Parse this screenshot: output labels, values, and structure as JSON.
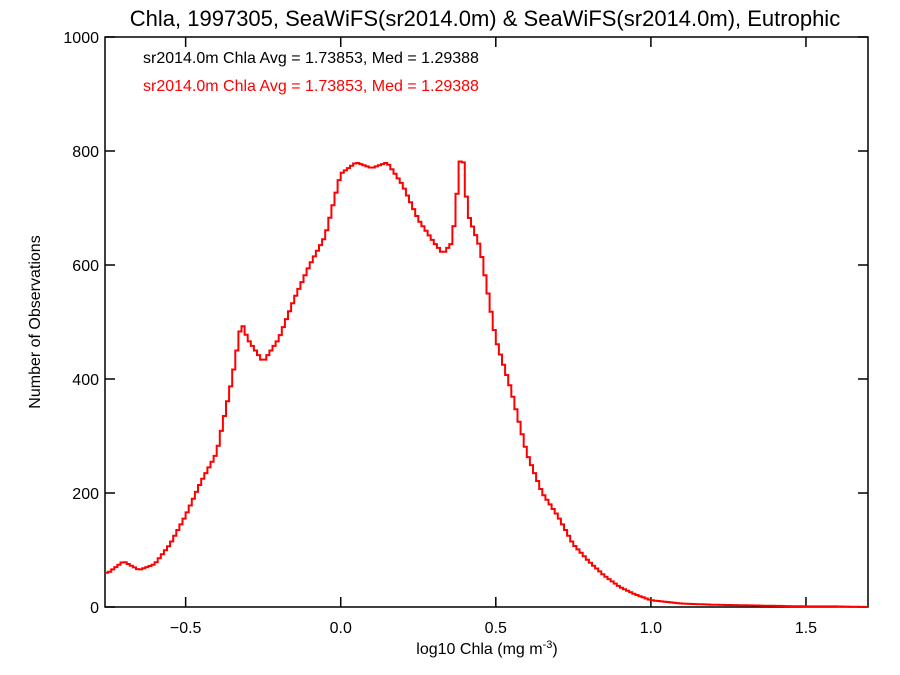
{
  "chart_data": {
    "type": "histogram",
    "title": "Chla, 1997305, SeaWiFS(sr2014.0m) & SeaWiFS(sr2014.0m), Eutrophic",
    "xlabel": "log10 Chla (mg m",
    "xlabel_sup": "-3",
    "xlabel_close": ")",
    "ylabel": "Number of Observations",
    "xlim": [
      -0.76,
      1.7
    ],
    "ylim": [
      0,
      1000
    ],
    "xticks": [
      -0.5,
      0.0,
      0.5,
      1.0,
      1.5
    ],
    "xtick_labels": [
      "−0.5",
      "0.0",
      "0.5",
      "1.0",
      "1.5"
    ],
    "yticks": [
      0,
      200,
      400,
      600,
      800,
      1000
    ],
    "ytick_labels": [
      "0",
      "200",
      "400",
      "600",
      "800",
      "1000"
    ],
    "annotations": [
      {
        "text": "sr2014.0m Chla Avg = 1.73853, Med = 1.29388",
        "color": "#000000"
      },
      {
        "text": "sr2014.0m Chla Avg = 1.73853, Med = 1.29388",
        "color": "#ff0000"
      }
    ],
    "series": [
      {
        "color": "#ff0000",
        "x": [
          -0.75,
          -0.7,
          -0.65,
          -0.6,
          -0.55,
          -0.5,
          -0.45,
          -0.4,
          -0.35,
          -0.32,
          -0.3,
          -0.25,
          -0.2,
          -0.15,
          -0.1,
          -0.05,
          0.0,
          0.05,
          0.1,
          0.15,
          0.2,
          0.25,
          0.3,
          0.33,
          0.36,
          0.39,
          0.41,
          0.45,
          0.5,
          0.55,
          0.6,
          0.65,
          0.7,
          0.75,
          0.8,
          0.85,
          0.9,
          0.95,
          1.0,
          1.1,
          1.2,
          1.3,
          1.4,
          1.5,
          1.6,
          1.7
        ],
        "y": [
          60,
          80,
          65,
          75,
          110,
          160,
          220,
          270,
          400,
          500,
          470,
          430,
          470,
          540,
          600,
          650,
          760,
          780,
          770,
          780,
          740,
          680,
          640,
          620,
          640,
          810,
          690,
          630,
          470,
          380,
          270,
          200,
          160,
          110,
          80,
          55,
          35,
          22,
          12,
          6,
          4,
          3,
          2,
          1,
          1,
          0
        ]
      }
    ]
  }
}
